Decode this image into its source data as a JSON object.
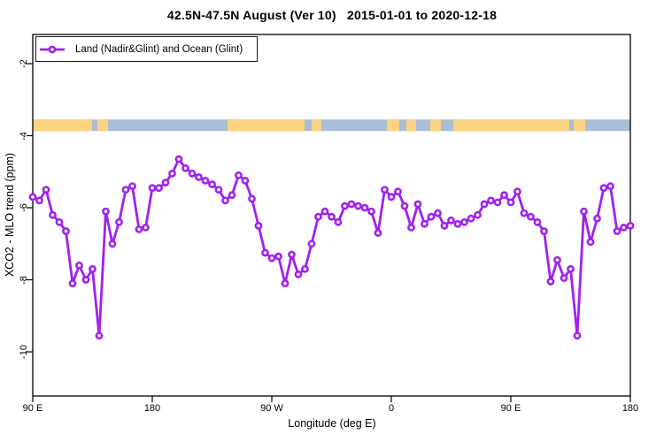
{
  "title": "42.5N-47.5N August (Ver 10)   2015-01-01 to 2020-12-18",
  "legend": {
    "label": "Land (Nadir&Glint) and Ocean (Glint)"
  },
  "axes": {
    "x_label": "Longitude (deg E)",
    "y_label": "XCO2 - MLO trend (ppm)",
    "x_ticks": [
      "90 E",
      "180",
      "90 W",
      "0",
      "90 E",
      "180"
    ],
    "y_ticks": [
      "-2",
      "-4",
      "-6",
      "-8",
      "-10"
    ]
  },
  "colors": {
    "line": "#A020F0",
    "marker_fill": "#ffffff",
    "land": "#FBD382",
    "ocean": "#A9BDD8",
    "axis": "#000000"
  },
  "chart_data": {
    "type": "line",
    "title": "42.5N-47.5N August (Ver 10) 2015-01-01 to 2020-12-18",
    "xlabel": "Longitude (deg E)",
    "ylabel": "XCO2 - MLO trend (ppm)",
    "grid": false,
    "legend_position": "top-left",
    "ylim": [
      -11.2,
      -1.2
    ],
    "x_axis": {
      "tick_labels": [
        "90 E",
        "180",
        "90 W",
        "0",
        "90 E",
        "180"
      ],
      "start_deg_east": 90,
      "step_deg": 5,
      "span_deg": 450,
      "note": "longitude wraps eastward: 90E > 180 > 90W > 0 > 90E > 180"
    },
    "series": [
      {
        "name": "Land (Nadir&Glint) and Ocean (Glint)",
        "marker": "open-circle",
        "color": "#A020F0",
        "values": [
          -5.7,
          -5.8,
          -5.5,
          -6.2,
          -6.4,
          -6.65,
          -8.1,
          -7.6,
          -8.0,
          -7.7,
          -9.55,
          -6.1,
          -7.0,
          -6.4,
          -5.5,
          -5.4,
          -6.6,
          -6.55,
          -5.45,
          -5.45,
          -5.3,
          -5.05,
          -4.65,
          -4.9,
          -5.05,
          -5.15,
          -5.25,
          -5.35,
          -5.5,
          -5.8,
          -5.65,
          -5.1,
          -5.25,
          -5.75,
          -6.5,
          -7.25,
          -7.4,
          -7.35,
          -8.1,
          -7.3,
          -7.85,
          -7.7,
          -7.0,
          -6.25,
          -6.1,
          -6.25,
          -6.4,
          -5.95,
          -5.9,
          -5.95,
          -6.0,
          -6.1,
          -6.7,
          -5.5,
          -5.7,
          -5.55,
          -5.95,
          -6.55,
          -5.9,
          -6.45,
          -6.25,
          -6.15,
          -6.5,
          -6.35,
          -6.45,
          -6.4,
          -6.3,
          -6.2,
          -5.9,
          -5.8,
          -5.85,
          -5.65,
          -5.85,
          -5.55,
          -6.15,
          -6.25,
          -6.4,
          -6.65,
          -8.05,
          -7.45,
          -7.95,
          -7.7,
          -9.55,
          -6.1,
          -6.95,
          -6.3,
          -5.45,
          -5.4,
          -6.65,
          -6.55,
          -6.5
        ]
      }
    ],
    "map_strip": {
      "description": "coastline band for latitude 42.5N-47.5N (land vs ocean)",
      "value_band": [
        -3.87,
        -3.55
      ],
      "ocean_span_deg": [
        90,
        540
      ],
      "land_spans_deg": [
        [
          90,
          134.7
        ],
        [
          138.7,
          146.7
        ],
        [
          236.7,
          294.7
        ],
        [
          300,
          307.3
        ],
        [
          356.7,
          366
        ],
        [
          371.3,
          378.7
        ],
        [
          389.3,
          397.3
        ],
        [
          406.7,
          494
        ],
        [
          497.3,
          506
        ]
      ]
    }
  }
}
